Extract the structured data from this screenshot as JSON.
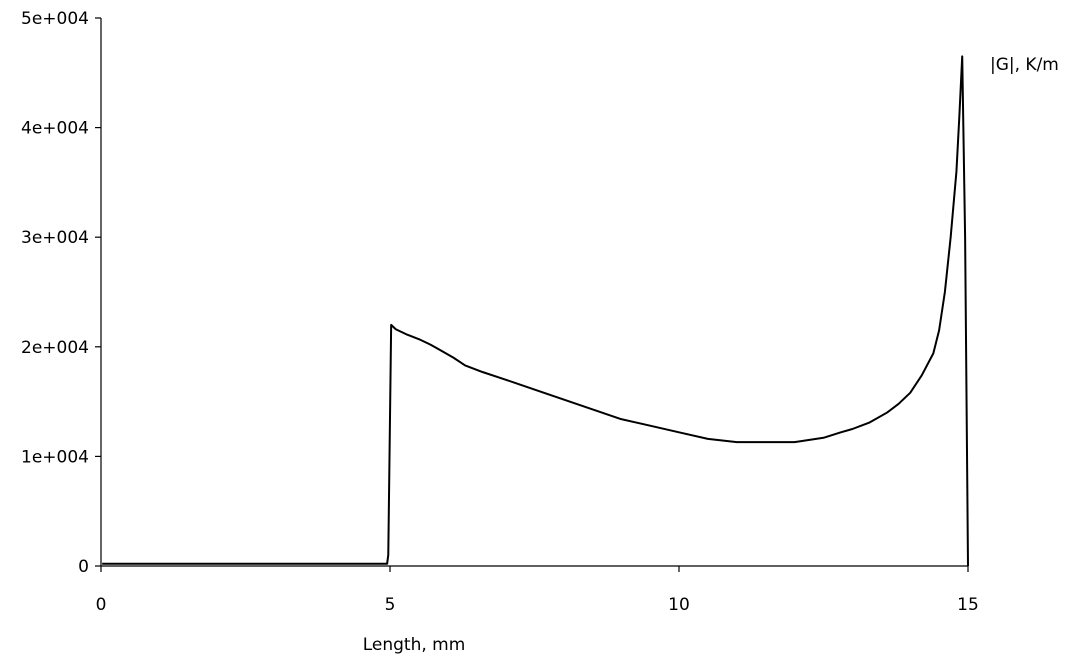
{
  "chart_data": {
    "type": "line",
    "title": "",
    "xlabel": "Length, mm",
    "ylabel": "|G|, K/m",
    "xlim": [
      0,
      15
    ],
    "ylim": [
      0,
      50000
    ],
    "grid": false,
    "x_ticks": [
      0,
      5,
      10,
      15
    ],
    "x_tick_labels": [
      "0",
      "5",
      "10",
      "15"
    ],
    "y_ticks": [
      0,
      10000,
      20000,
      30000,
      40000,
      50000
    ],
    "y_tick_labels": [
      "0",
      "1e+004",
      "2e+004",
      "3e+004",
      "4e+004",
      "5e+004"
    ],
    "series": [
      {
        "color": "#000000",
        "x": [
          0.02,
          4.95,
          4.97,
          5.02,
          5.1,
          5.3,
          5.5,
          5.7,
          5.9,
          6.1,
          6.3,
          6.6,
          7.0,
          7.5,
          8.0,
          8.5,
          9.0,
          9.5,
          10.0,
          10.5,
          11.0,
          11.5,
          12.0,
          12.5,
          12.8,
          13.0,
          13.3,
          13.6,
          13.8,
          14.0,
          14.2,
          14.4,
          14.5,
          14.6,
          14.7,
          14.8,
          14.85,
          14.9,
          14.95,
          15.0
        ],
        "y": [
          200,
          200,
          1000,
          22000,
          21600,
          21100,
          20700,
          20200,
          19600,
          19000,
          18300,
          17700,
          17000,
          16100,
          15200,
          14300,
          13400,
          12800,
          12200,
          11600,
          11300,
          11300,
          11300,
          11700,
          12200,
          12500,
          13100,
          14000,
          14800,
          15800,
          17400,
          19400,
          21500,
          25000,
          30000,
          36000,
          41000,
          46500,
          30000,
          0
        ]
      }
    ]
  }
}
